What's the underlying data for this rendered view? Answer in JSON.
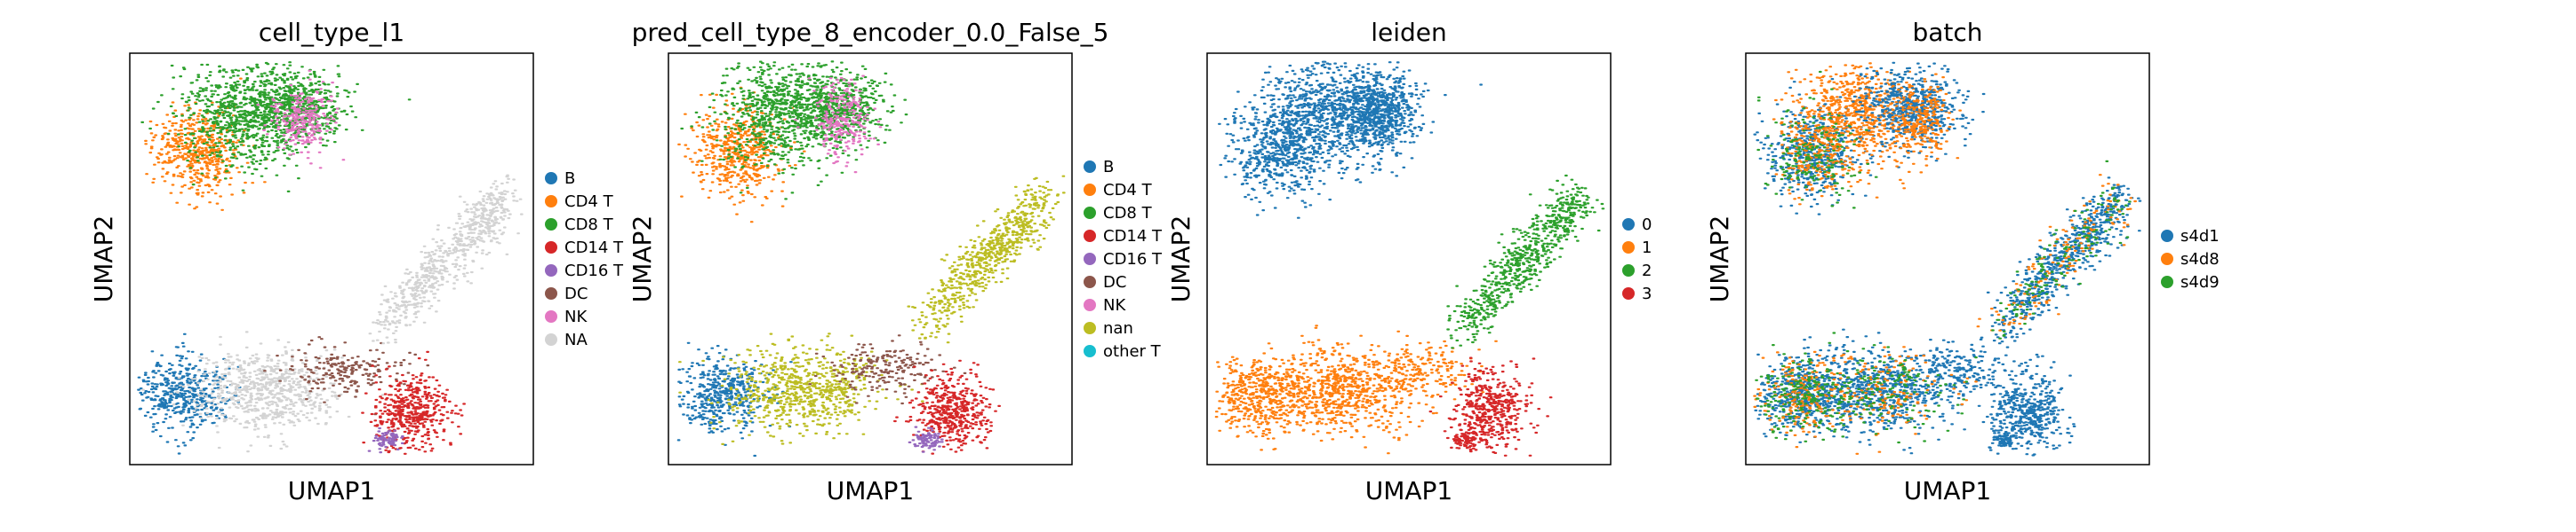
{
  "chart_data": [
    {
      "type": "scatter",
      "title": "cell_type_l1",
      "xlabel": "UMAP1",
      "ylabel": "UMAP2",
      "legend_placement": "right",
      "series": [
        {
          "name": "B",
          "color": "#1f77b4"
        },
        {
          "name": "CD4 T",
          "color": "#ff7f0e"
        },
        {
          "name": "CD8 T",
          "color": "#2ca02c"
        },
        {
          "name": "CD14 T",
          "color": "#d62728"
        },
        {
          "name": "CD16 T",
          "color": "#9467bd"
        },
        {
          "name": "DC",
          "color": "#8c564b"
        },
        {
          "name": "NK",
          "color": "#e377c2"
        },
        {
          "name": "NA",
          "color": "#d3d3d3"
        }
      ]
    },
    {
      "type": "scatter",
      "title": "pred_cell_type_8_encoder_0.0_False_5",
      "xlabel": "UMAP1",
      "ylabel": "UMAP2",
      "legend_placement": "right",
      "series": [
        {
          "name": "B",
          "color": "#1f77b4"
        },
        {
          "name": "CD4 T",
          "color": "#ff7f0e"
        },
        {
          "name": "CD8 T",
          "color": "#2ca02c"
        },
        {
          "name": "CD14 T",
          "color": "#d62728"
        },
        {
          "name": "CD16 T",
          "color": "#9467bd"
        },
        {
          "name": "DC",
          "color": "#8c564b"
        },
        {
          "name": "NK",
          "color": "#e377c2"
        },
        {
          "name": "nan",
          "color": "#bcbd22"
        },
        {
          "name": "other T",
          "color": "#17becf"
        }
      ]
    },
    {
      "type": "scatter",
      "title": "leiden",
      "xlabel": "UMAP1",
      "ylabel": "UMAP2",
      "legend_placement": "right",
      "series": [
        {
          "name": "0",
          "color": "#1f77b4"
        },
        {
          "name": "1",
          "color": "#ff7f0e"
        },
        {
          "name": "2",
          "color": "#2ca02c"
        },
        {
          "name": "3",
          "color": "#d62728"
        }
      ]
    },
    {
      "type": "scatter",
      "title": "batch",
      "xlabel": "UMAP1",
      "ylabel": "UMAP2",
      "legend_placement": "right",
      "series": [
        {
          "name": "s4d1",
          "color": "#1f77b4"
        },
        {
          "name": "s4d8",
          "color": "#ff7f0e"
        },
        {
          "name": "s4d9",
          "color": "#2ca02c"
        }
      ]
    }
  ]
}
